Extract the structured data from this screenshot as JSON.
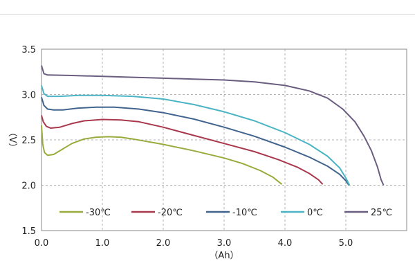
{
  "chart_data": {
    "type": "line",
    "title": "",
    "xlabel": "（Ah）",
    "ylabel": "（V）",
    "xlim": [
      0,
      6.0
    ],
    "ylim": [
      1.5,
      3.5
    ],
    "x_ticks": [
      "0.0",
      "1.0",
      "2.0",
      "3.0",
      "4.0",
      "5.0"
    ],
    "y_ticks": [
      "1.5",
      "2.0",
      "2.5",
      "3.0",
      "3.5"
    ],
    "grid": "dashed",
    "legend_position": "bottom-inside",
    "series": [
      {
        "name": "-30℃",
        "color": "#9aaa3c",
        "points": [
          [
            0.0,
            2.66
          ],
          [
            0.02,
            2.45
          ],
          [
            0.05,
            2.36
          ],
          [
            0.1,
            2.33
          ],
          [
            0.2,
            2.34
          ],
          [
            0.35,
            2.4
          ],
          [
            0.5,
            2.46
          ],
          [
            0.7,
            2.51
          ],
          [
            0.9,
            2.53
          ],
          [
            1.1,
            2.535
          ],
          [
            1.3,
            2.53
          ],
          [
            1.5,
            2.51
          ],
          [
            2.0,
            2.45
          ],
          [
            2.5,
            2.38
          ],
          [
            3.0,
            2.3
          ],
          [
            3.3,
            2.24
          ],
          [
            3.6,
            2.16
          ],
          [
            3.8,
            2.09
          ],
          [
            3.95,
            2.01
          ]
        ]
      },
      {
        "name": "-20℃",
        "color": "#a9384d",
        "points": [
          [
            0.0,
            2.77
          ],
          [
            0.03,
            2.7
          ],
          [
            0.08,
            2.65
          ],
          [
            0.15,
            2.63
          ],
          [
            0.3,
            2.64
          ],
          [
            0.5,
            2.68
          ],
          [
            0.7,
            2.71
          ],
          [
            1.0,
            2.725
          ],
          [
            1.3,
            2.72
          ],
          [
            1.6,
            2.7
          ],
          [
            2.0,
            2.64
          ],
          [
            2.5,
            2.55
          ],
          [
            3.0,
            2.46
          ],
          [
            3.5,
            2.37
          ],
          [
            3.9,
            2.28
          ],
          [
            4.2,
            2.2
          ],
          [
            4.4,
            2.13
          ],
          [
            4.55,
            2.06
          ],
          [
            4.62,
            2.01
          ]
        ]
      },
      {
        "name": "-10℃",
        "color": "#41648e",
        "points": [
          [
            0.0,
            2.97
          ],
          [
            0.04,
            2.88
          ],
          [
            0.1,
            2.84
          ],
          [
            0.2,
            2.83
          ],
          [
            0.35,
            2.83
          ],
          [
            0.6,
            2.85
          ],
          [
            0.9,
            2.86
          ],
          [
            1.2,
            2.86
          ],
          [
            1.6,
            2.84
          ],
          [
            2.0,
            2.8
          ],
          [
            2.5,
            2.73
          ],
          [
            3.0,
            2.64
          ],
          [
            3.5,
            2.54
          ],
          [
            4.0,
            2.42
          ],
          [
            4.4,
            2.31
          ],
          [
            4.7,
            2.21
          ],
          [
            4.9,
            2.12
          ],
          [
            5.0,
            2.05
          ],
          [
            5.05,
            2.0
          ]
        ]
      },
      {
        "name": "0℃",
        "color": "#4ab4c4",
        "points": [
          [
            0.0,
            3.1
          ],
          [
            0.04,
            3.01
          ],
          [
            0.1,
            2.98
          ],
          [
            0.3,
            2.98
          ],
          [
            0.6,
            2.99
          ],
          [
            1.0,
            2.99
          ],
          [
            1.5,
            2.98
          ],
          [
            2.0,
            2.95
          ],
          [
            2.5,
            2.89
          ],
          [
            3.0,
            2.81
          ],
          [
            3.5,
            2.71
          ],
          [
            4.0,
            2.58
          ],
          [
            4.4,
            2.45
          ],
          [
            4.7,
            2.32
          ],
          [
            4.9,
            2.19
          ],
          [
            5.0,
            2.08
          ],
          [
            5.06,
            2.0
          ]
        ]
      },
      {
        "name": "25℃",
        "color": "#6b5d80",
        "points": [
          [
            0.0,
            3.32
          ],
          [
            0.04,
            3.23
          ],
          [
            0.1,
            3.215
          ],
          [
            0.5,
            3.21
          ],
          [
            1.0,
            3.2
          ],
          [
            1.5,
            3.19
          ],
          [
            2.0,
            3.18
          ],
          [
            2.5,
            3.17
          ],
          [
            3.0,
            3.16
          ],
          [
            3.5,
            3.14
          ],
          [
            4.0,
            3.1
          ],
          [
            4.4,
            3.04
          ],
          [
            4.7,
            2.96
          ],
          [
            4.95,
            2.84
          ],
          [
            5.15,
            2.7
          ],
          [
            5.3,
            2.54
          ],
          [
            5.42,
            2.38
          ],
          [
            5.52,
            2.2
          ],
          [
            5.58,
            2.06
          ],
          [
            5.62,
            2.0
          ]
        ]
      }
    ]
  }
}
